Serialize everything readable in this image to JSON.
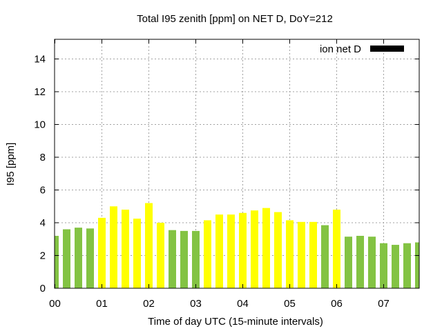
{
  "chart_data": {
    "type": "bar",
    "title": "Total I95 zenith [ppm] on NET D, DoY=212",
    "xlabel": "Time of day UTC (15-minute intervals)",
    "ylabel": "I95 [ppm]",
    "ylim": [
      0,
      15.2
    ],
    "yticks": [
      "0",
      "2",
      "4",
      "6",
      "8",
      "10",
      "12",
      "14"
    ],
    "xticks": [
      "00",
      "01",
      "02",
      "03",
      "04",
      "05",
      "06",
      "07"
    ],
    "grid": true,
    "legend": {
      "label": "ion net D",
      "position": "top-right",
      "color": "#000000"
    },
    "colors": {
      "green": "#83c343",
      "yellow": "#ffff00"
    },
    "bars": [
      {
        "t": 0.0,
        "value": 3.2,
        "color": "green"
      },
      {
        "t": 0.25,
        "value": 3.6,
        "color": "green"
      },
      {
        "t": 0.5,
        "value": 3.7,
        "color": "green"
      },
      {
        "t": 0.75,
        "value": 3.65,
        "color": "green"
      },
      {
        "t": 1.0,
        "value": 4.3,
        "color": "yellow"
      },
      {
        "t": 1.25,
        "value": 5.0,
        "color": "yellow"
      },
      {
        "t": 1.5,
        "value": 4.8,
        "color": "yellow"
      },
      {
        "t": 1.75,
        "value": 4.25,
        "color": "yellow"
      },
      {
        "t": 2.0,
        "value": 5.2,
        "color": "yellow"
      },
      {
        "t": 2.25,
        "value": 4.0,
        "color": "yellow"
      },
      {
        "t": 2.5,
        "value": 3.55,
        "color": "green"
      },
      {
        "t": 2.75,
        "value": 3.5,
        "color": "green"
      },
      {
        "t": 3.0,
        "value": 3.5,
        "color": "green"
      },
      {
        "t": 3.25,
        "value": 4.15,
        "color": "yellow"
      },
      {
        "t": 3.5,
        "value": 4.5,
        "color": "yellow"
      },
      {
        "t": 3.75,
        "value": 4.5,
        "color": "yellow"
      },
      {
        "t": 4.0,
        "value": 4.6,
        "color": "yellow"
      },
      {
        "t": 4.25,
        "value": 4.75,
        "color": "yellow"
      },
      {
        "t": 4.5,
        "value": 4.9,
        "color": "yellow"
      },
      {
        "t": 4.75,
        "value": 4.65,
        "color": "yellow"
      },
      {
        "t": 5.0,
        "value": 4.15,
        "color": "yellow"
      },
      {
        "t": 5.25,
        "value": 4.05,
        "color": "yellow"
      },
      {
        "t": 5.5,
        "value": 4.05,
        "color": "yellow"
      },
      {
        "t": 5.75,
        "value": 3.85,
        "color": "green"
      },
      {
        "t": 6.0,
        "value": 4.8,
        "color": "yellow"
      },
      {
        "t": 6.25,
        "value": 3.15,
        "color": "green"
      },
      {
        "t": 6.5,
        "value": 3.2,
        "color": "green"
      },
      {
        "t": 6.75,
        "value": 3.15,
        "color": "green"
      },
      {
        "t": 7.0,
        "value": 2.75,
        "color": "green"
      },
      {
        "t": 7.25,
        "value": 2.65,
        "color": "green"
      },
      {
        "t": 7.5,
        "value": 2.75,
        "color": "green"
      },
      {
        "t": 7.75,
        "value": 2.8,
        "color": "green"
      }
    ]
  }
}
